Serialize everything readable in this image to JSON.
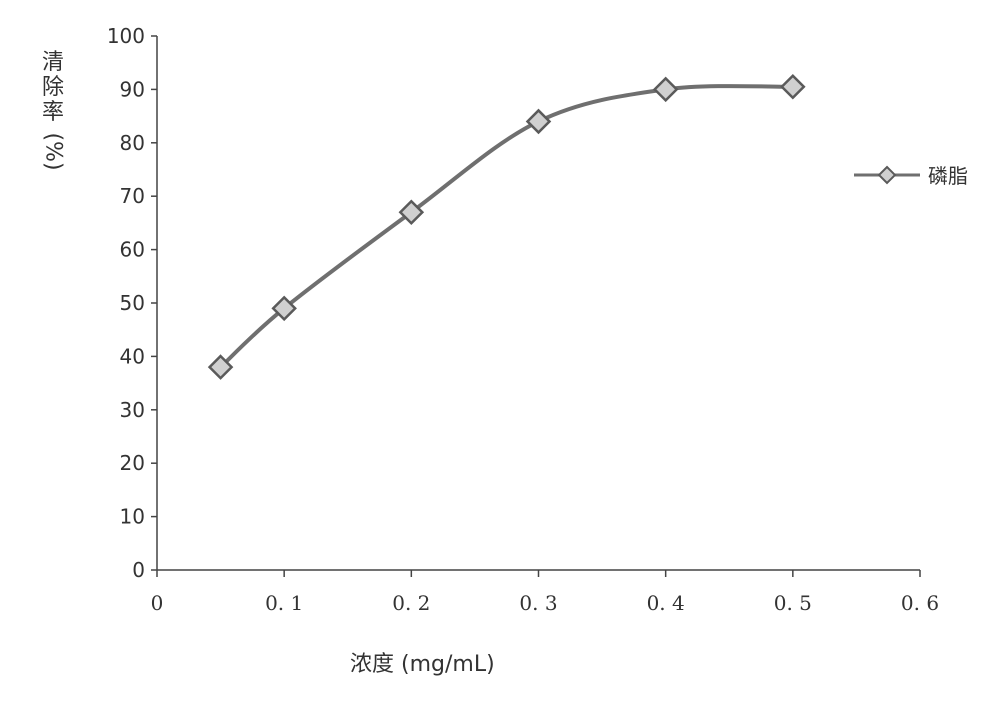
{
  "chart_data": {
    "type": "line",
    "x": [
      0.05,
      0.1,
      0.2,
      0.3,
      0.4,
      0.5
    ],
    "series": [
      {
        "name": "磷脂",
        "values": [
          38,
          49,
          67,
          84,
          90,
          90.5
        ]
      }
    ],
    "xlim": [
      0,
      0.6
    ],
    "ylim": [
      0,
      100
    ],
    "xticks": [
      "0",
      "0. 1",
      "0. 2",
      "0. 3",
      "0. 4",
      "0. 5",
      "0. 6"
    ],
    "yticks": [
      "0",
      "10",
      "20",
      "30",
      "40",
      "50",
      "60",
      "70",
      "80",
      "90",
      "100"
    ],
    "xlabel": "浓度 (mg/mL)",
    "ylabel_chars": [
      "清",
      "除",
      "率"
    ],
    "ylabel_unit": "(%)",
    "grid": false,
    "legend_position": "right",
    "colors": {
      "line": "#6f6f6f",
      "marker_fill": "#d0d0d0",
      "marker_stroke": "#5a5a5a",
      "axis": "#444444"
    }
  }
}
